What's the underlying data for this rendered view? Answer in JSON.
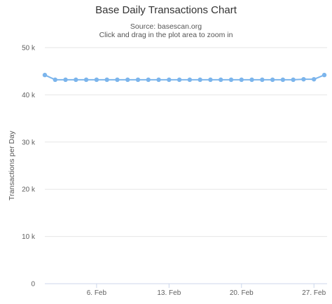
{
  "chart_data": {
    "type": "line",
    "title": "Base Daily Transactions Chart",
    "subtitle": "Source: basescan.org",
    "instruction": "Click and drag in the plot area to zoom in",
    "xlabel": "",
    "ylabel": "Transactions per Day",
    "ylim": [
      0,
      50000
    ],
    "y_ticks": [
      0,
      10000,
      20000,
      30000,
      40000,
      50000
    ],
    "y_tick_labels": [
      "0",
      "10 k",
      "20 k",
      "30 k",
      "40 k",
      "50 k"
    ],
    "x_ticks": [
      6,
      13,
      20,
      27
    ],
    "x_tick_labels": [
      "6. Feb",
      "13. Feb",
      "20. Feb",
      "27. Feb"
    ],
    "xlim": [
      1,
      28
    ],
    "grid": true,
    "legend": "none",
    "series": [
      {
        "color": "#7cb5ec",
        "x": [
          1,
          2,
          3,
          4,
          5,
          6,
          7,
          8,
          9,
          10,
          11,
          12,
          13,
          14,
          15,
          16,
          17,
          18,
          19,
          20,
          21,
          22,
          23,
          24,
          25,
          26,
          27,
          28
        ],
        "values": [
          44200,
          43200,
          43200,
          43200,
          43200,
          43200,
          43200,
          43200,
          43200,
          43200,
          43200,
          43200,
          43200,
          43200,
          43200,
          43200,
          43200,
          43200,
          43200,
          43200,
          43200,
          43200,
          43200,
          43200,
          43200,
          43300,
          43300,
          44200
        ]
      }
    ]
  }
}
